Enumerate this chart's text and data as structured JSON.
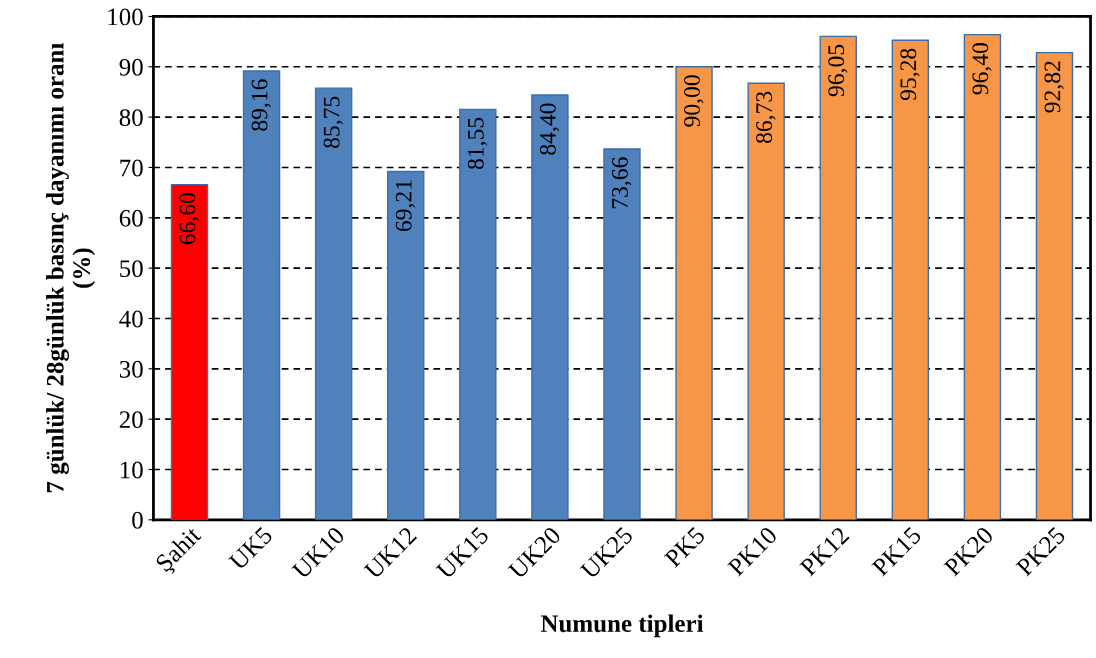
{
  "chart_data": {
    "type": "bar",
    "xlabel": "Numune tipleri",
    "ylabel": "7 günlük/ 28günlük basınç dayanımı oranı\n(%)",
    "categories": [
      "Şahit",
      "UK5",
      "UK10",
      "UK12",
      "UK15",
      "UK20",
      "UK25",
      "PK5",
      "PK10",
      "PK12",
      "PK15",
      "PK20",
      "PK25"
    ],
    "values": [
      66.6,
      89.16,
      85.75,
      69.21,
      81.55,
      84.4,
      73.66,
      90.0,
      86.73,
      96.05,
      95.28,
      96.4,
      92.82
    ],
    "value_labels": [
      "66,60",
      "89,16",
      "85,75",
      "69,21",
      "81,55",
      "84,40",
      "73,66",
      "90,00",
      "86,73",
      "96,05",
      "95,28",
      "96,40",
      "92,82"
    ],
    "colors": [
      "#ff0000",
      "#4f81bd",
      "#4f81bd",
      "#4f81bd",
      "#4f81bd",
      "#4f81bd",
      "#4f81bd",
      "#f79646",
      "#f79646",
      "#f79646",
      "#f79646",
      "#f79646",
      "#f79646"
    ],
    "ylim": [
      0,
      100
    ],
    "yticks": [
      0,
      10,
      20,
      30,
      40,
      50,
      60,
      70,
      80,
      90,
      100
    ],
    "grid": "y",
    "line_style": "dashed"
  }
}
